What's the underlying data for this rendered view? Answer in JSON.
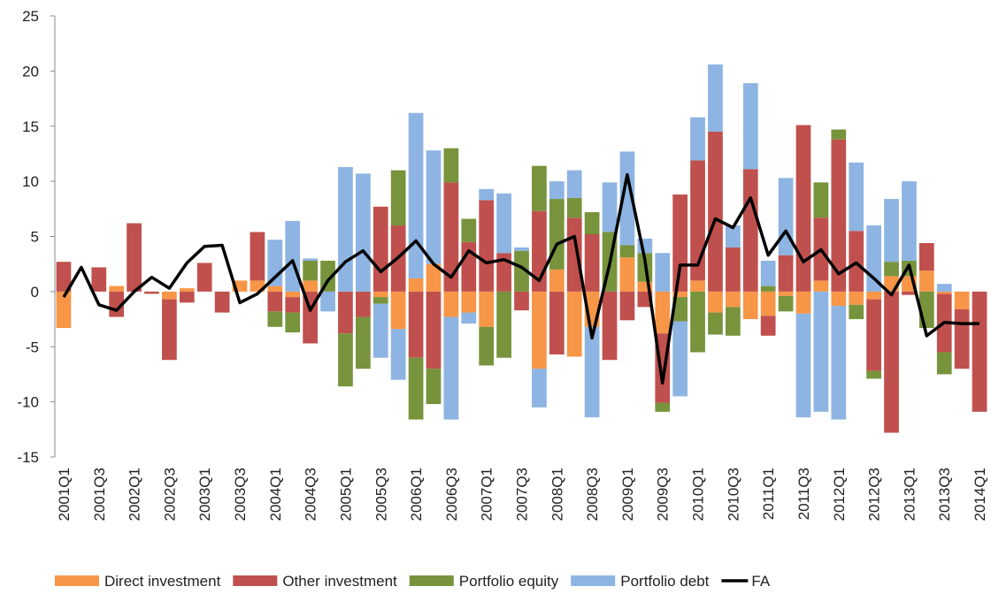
{
  "chart_data": {
    "type": "bar",
    "stacked": true,
    "categories": [
      "2001Q1",
      null,
      "2001Q3",
      null,
      "2002Q1",
      null,
      "2002Q3",
      null,
      "2003Q1",
      null,
      "2003Q3",
      null,
      "2004Q1",
      null,
      "2004Q3",
      null,
      "2005Q1",
      null,
      "2005Q3",
      null,
      "2006Q1",
      null,
      "2006Q3",
      null,
      "2007Q1",
      null,
      "2007Q3",
      null,
      "2008Q1",
      null,
      "2008Q3",
      null,
      "2009Q1",
      null,
      "2009Q3",
      null,
      "2010Q1",
      null,
      "2010Q3",
      null,
      "2011Q1",
      null,
      "2011Q3",
      null,
      "2012Q1",
      null,
      "2012Q3",
      null,
      "2013Q1",
      null,
      "2013Q3",
      null,
      "2014Q1"
    ],
    "series": [
      {
        "name": "Direct investment",
        "color": "#f79646",
        "values": [
          -3.3,
          0,
          0,
          0.5,
          0,
          0,
          -0.7,
          0.3,
          0,
          0,
          1.0,
          1.0,
          0.5,
          -0.5,
          1.0,
          0,
          0,
          0,
          -0.5,
          -3.4,
          1.2,
          2.5,
          -2.3,
          -1.9,
          -3.2,
          0,
          0,
          -7.0,
          2.0,
          -5.9,
          -3.2,
          0,
          3.1,
          0.9,
          -3.8,
          -0.5,
          1.0,
          -1.9,
          -1.4,
          -2.5,
          -2.2,
          -0.4,
          -2.0,
          1.0,
          -1.3,
          -1.2,
          -0.7,
          1.4,
          1.4,
          1.9,
          -0.2,
          -1.6,
          0
        ]
      },
      {
        "name": "Other investment",
        "color": "#c0504d",
        "values": [
          2.7,
          0,
          2.2,
          -2.3,
          6.2,
          -0.2,
          -5.5,
          -1.0,
          2.6,
          -1.9,
          0,
          4.4,
          -1.8,
          -1.4,
          -4.7,
          0,
          -3.8,
          -2.3,
          7.7,
          6.0,
          -6.0,
          -7.0,
          9.9,
          4.5,
          8.3,
          3.5,
          -1.7,
          7.3,
          -5.7,
          6.7,
          5.2,
          -6.2,
          -2.6,
          -1.4,
          -6.3,
          8.8,
          10.9,
          14.5,
          4.0,
          11.1,
          -1.8,
          3.3,
          15.1,
          5.7,
          13.8,
          5.5,
          -6.5,
          -12.8,
          -0.3,
          2.5,
          -5.3,
          -5.4,
          -10.9
        ]
      },
      {
        "name": "Portfolio equity",
        "color": "#77933c",
        "values": [
          0,
          0,
          0,
          0,
          0,
          0,
          0,
          0,
          0,
          0,
          0,
          0,
          -1.4,
          -1.8,
          1.8,
          2.8,
          -4.8,
          -4.7,
          -0.6,
          5.0,
          -5.6,
          -3.2,
          3.1,
          2.1,
          -3.5,
          -6.0,
          3.7,
          4.1,
          6.4,
          1.8,
          2.0,
          5.4,
          1.1,
          2.6,
          -0.8,
          -2.2,
          -5.5,
          -2.0,
          -2.6,
          0,
          0.5,
          -1.4,
          0,
          3.2,
          0.9,
          -1.3,
          -0.7,
          1.3,
          1.4,
          -3.3,
          -2.0,
          0,
          0
        ]
      },
      {
        "name": "Portfolio debt",
        "color": "#8db4e2",
        "values": [
          0,
          0,
          0,
          0,
          0,
          0,
          0,
          0,
          0,
          0,
          0,
          0,
          4.2,
          6.4,
          0.2,
          -1.8,
          11.3,
          10.7,
          -4.9,
          -4.6,
          15.0,
          10.3,
          -9.3,
          -1.0,
          1.0,
          5.4,
          0.3,
          -3.5,
          1.6,
          2.5,
          -8.2,
          4.5,
          8.5,
          1.3,
          3.5,
          -6.8,
          3.9,
          6.1,
          2.0,
          7.8,
          2.3,
          7.0,
          -9.4,
          -10.9,
          -10.3,
          6.2,
          6.0,
          5.7,
          7.2,
          0,
          0.7,
          0,
          0
        ]
      },
      {
        "name": "FA",
        "color": "#000000",
        "type": "line",
        "values": [
          -0.5,
          2.2,
          -1.2,
          -1.7,
          0,
          1.3,
          0.3,
          2.6,
          4.1,
          4.2,
          -1.0,
          -0.2,
          1.3,
          2.8,
          -1.7,
          1.0,
          2.7,
          3.7,
          1.8,
          3.1,
          4.6,
          2.5,
          1.3,
          3.7,
          2.6,
          2.9,
          2.2,
          1.0,
          4.3,
          5.0,
          -4.2,
          2.5,
          10.6,
          2.9,
          -8.3,
          2.4,
          2.4,
          6.6,
          5.8,
          8.5,
          3.3,
          5.5,
          2.7,
          3.8,
          1.6,
          2.6,
          1.2,
          -0.3,
          2.4,
          -4.0,
          -2.8,
          -2.9,
          -2.9
        ]
      }
    ],
    "ylim": [
      -15,
      25
    ],
    "yticks": [
      -15,
      -10,
      -5,
      0,
      5,
      10,
      15,
      20,
      25
    ],
    "grid": false,
    "legend": "bottom"
  }
}
